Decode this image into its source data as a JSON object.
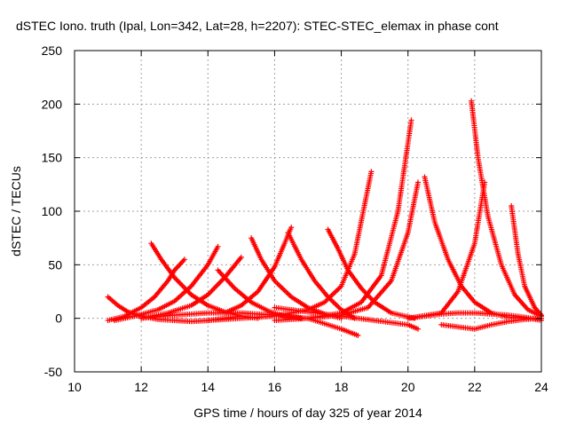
{
  "chart_data": {
    "type": "scatter",
    "title": "dSTEC Iono. truth (Ipal, Lon=342, Lat=28, h=2207): STEC-STEC_elemax in phase cont",
    "xlabel": "GPS time / hours of day 325 of year 2014",
    "ylabel": "dSTEC  / TECUs",
    "xlim": [
      10,
      24
    ],
    "ylim": [
      -50,
      250
    ],
    "xticks": [
      10,
      12,
      14,
      16,
      18,
      20,
      22,
      24
    ],
    "yticks": [
      -50,
      0,
      50,
      100,
      150,
      200,
      250
    ],
    "grid": true,
    "marker": "+",
    "color": "#ff0000",
    "series": [
      {
        "x": [
          11.0,
          11.3,
          11.6,
          12.0,
          12.5,
          13.0,
          13.5,
          14.0,
          14.5,
          15.0
        ],
        "y": [
          20,
          12,
          6,
          2,
          -1,
          -2,
          -3,
          -2,
          0,
          2
        ]
      },
      {
        "x": [
          11.0,
          11.5,
          12.0,
          12.4,
          12.8,
          13.0,
          13.3
        ],
        "y": [
          -2,
          2,
          10,
          20,
          35,
          45,
          55
        ]
      },
      {
        "x": [
          11.2,
          11.8,
          12.5,
          13.0,
          13.5,
          14.0,
          14.3
        ],
        "y": [
          -2,
          2,
          8,
          16,
          30,
          50,
          67
        ]
      },
      {
        "x": [
          12.3,
          12.6,
          13.0,
          13.5,
          14.0,
          14.5,
          15.0,
          15.5
        ],
        "y": [
          70,
          55,
          38,
          22,
          12,
          6,
          2,
          0
        ]
      },
      {
        "x": [
          12.0,
          12.8,
          13.5,
          14.0,
          14.5,
          15.0
        ],
        "y": [
          0,
          5,
          12,
          22,
          38,
          57
        ]
      },
      {
        "x": [
          14.3,
          14.8,
          15.3,
          15.8,
          16.3,
          16.8
        ],
        "y": [
          45,
          28,
          15,
          7,
          2,
          0
        ]
      },
      {
        "x": [
          15.3,
          15.6,
          16.0,
          16.5,
          17.0,
          17.5,
          18.0
        ],
        "y": [
          75,
          55,
          35,
          20,
          10,
          4,
          0
        ]
      },
      {
        "x": [
          14.5,
          15.0,
          15.5,
          16.0,
          16.3,
          16.5
        ],
        "y": [
          5,
          12,
          25,
          48,
          70,
          85
        ]
      },
      {
        "x": [
          16.4,
          16.8,
          17.2,
          17.6,
          18.0,
          18.4
        ],
        "y": [
          80,
          55,
          35,
          20,
          8,
          0
        ]
      },
      {
        "x": [
          17.6,
          17.9,
          18.2,
          18.6,
          19.0,
          19.5,
          20.2
        ],
        "y": [
          83,
          65,
          45,
          28,
          15,
          5,
          0
        ]
      },
      {
        "x": [
          14.0,
          15.0,
          16.0,
          17.0,
          17.5,
          18.0,
          18.4,
          18.9
        ],
        "y": [
          -2,
          0,
          2,
          8,
          15,
          30,
          60,
          137
        ]
      },
      {
        "x": [
          16.0,
          17.0,
          18.0,
          18.6,
          19.2,
          19.7,
          20.1
        ],
        "y": [
          -2,
          0,
          5,
          15,
          40,
          100,
          185
        ]
      },
      {
        "x": [
          17.0,
          18.0,
          18.8,
          19.5,
          20.0,
          20.3
        ],
        "y": [
          0,
          3,
          10,
          35,
          80,
          127
        ]
      },
      {
        "x": [
          20.5,
          20.8,
          21.2,
          21.6,
          22.0,
          22.5,
          23.0,
          23.5,
          24.0
        ],
        "y": [
          132,
          90,
          55,
          30,
          15,
          5,
          1,
          0,
          0
        ]
      },
      {
        "x": [
          21.9,
          22.1,
          22.4,
          22.8,
          23.2,
          23.6,
          24.0
        ],
        "y": [
          203,
          150,
          95,
          50,
          22,
          8,
          2
        ]
      },
      {
        "x": [
          20.0,
          21.0,
          21.5,
          22.0,
          22.3
        ],
        "y": [
          0,
          5,
          25,
          70,
          127
        ]
      },
      {
        "x": [
          23.1,
          23.3,
          23.5,
          23.8,
          24.0
        ],
        "y": [
          105,
          60,
          30,
          10,
          3
        ]
      },
      {
        "x": [
          12.0,
          13.0,
          14.0,
          15.0,
          16.0,
          17.0,
          17.5,
          18.0,
          18.5
        ],
        "y": [
          0,
          3,
          5,
          5,
          3,
          0,
          -5,
          -10,
          -16
        ]
      },
      {
        "x": [
          16.0,
          17.0,
          18.0,
          19.0,
          20.0,
          20.3
        ],
        "y": [
          10,
          6,
          2,
          -2,
          -6,
          -10
        ]
      },
      {
        "x": [
          20.0,
          20.5,
          21.0,
          21.5,
          22.0,
          22.5,
          23.0,
          23.5,
          24.0
        ],
        "y": [
          0,
          2,
          4,
          5,
          5,
          4,
          3,
          1,
          -2
        ]
      },
      {
        "x": [
          21.0,
          21.5,
          22.0,
          22.5,
          23.0,
          23.5,
          24.0
        ],
        "y": [
          -6,
          -8,
          -10,
          -6,
          -3,
          -1,
          0
        ]
      }
    ]
  }
}
